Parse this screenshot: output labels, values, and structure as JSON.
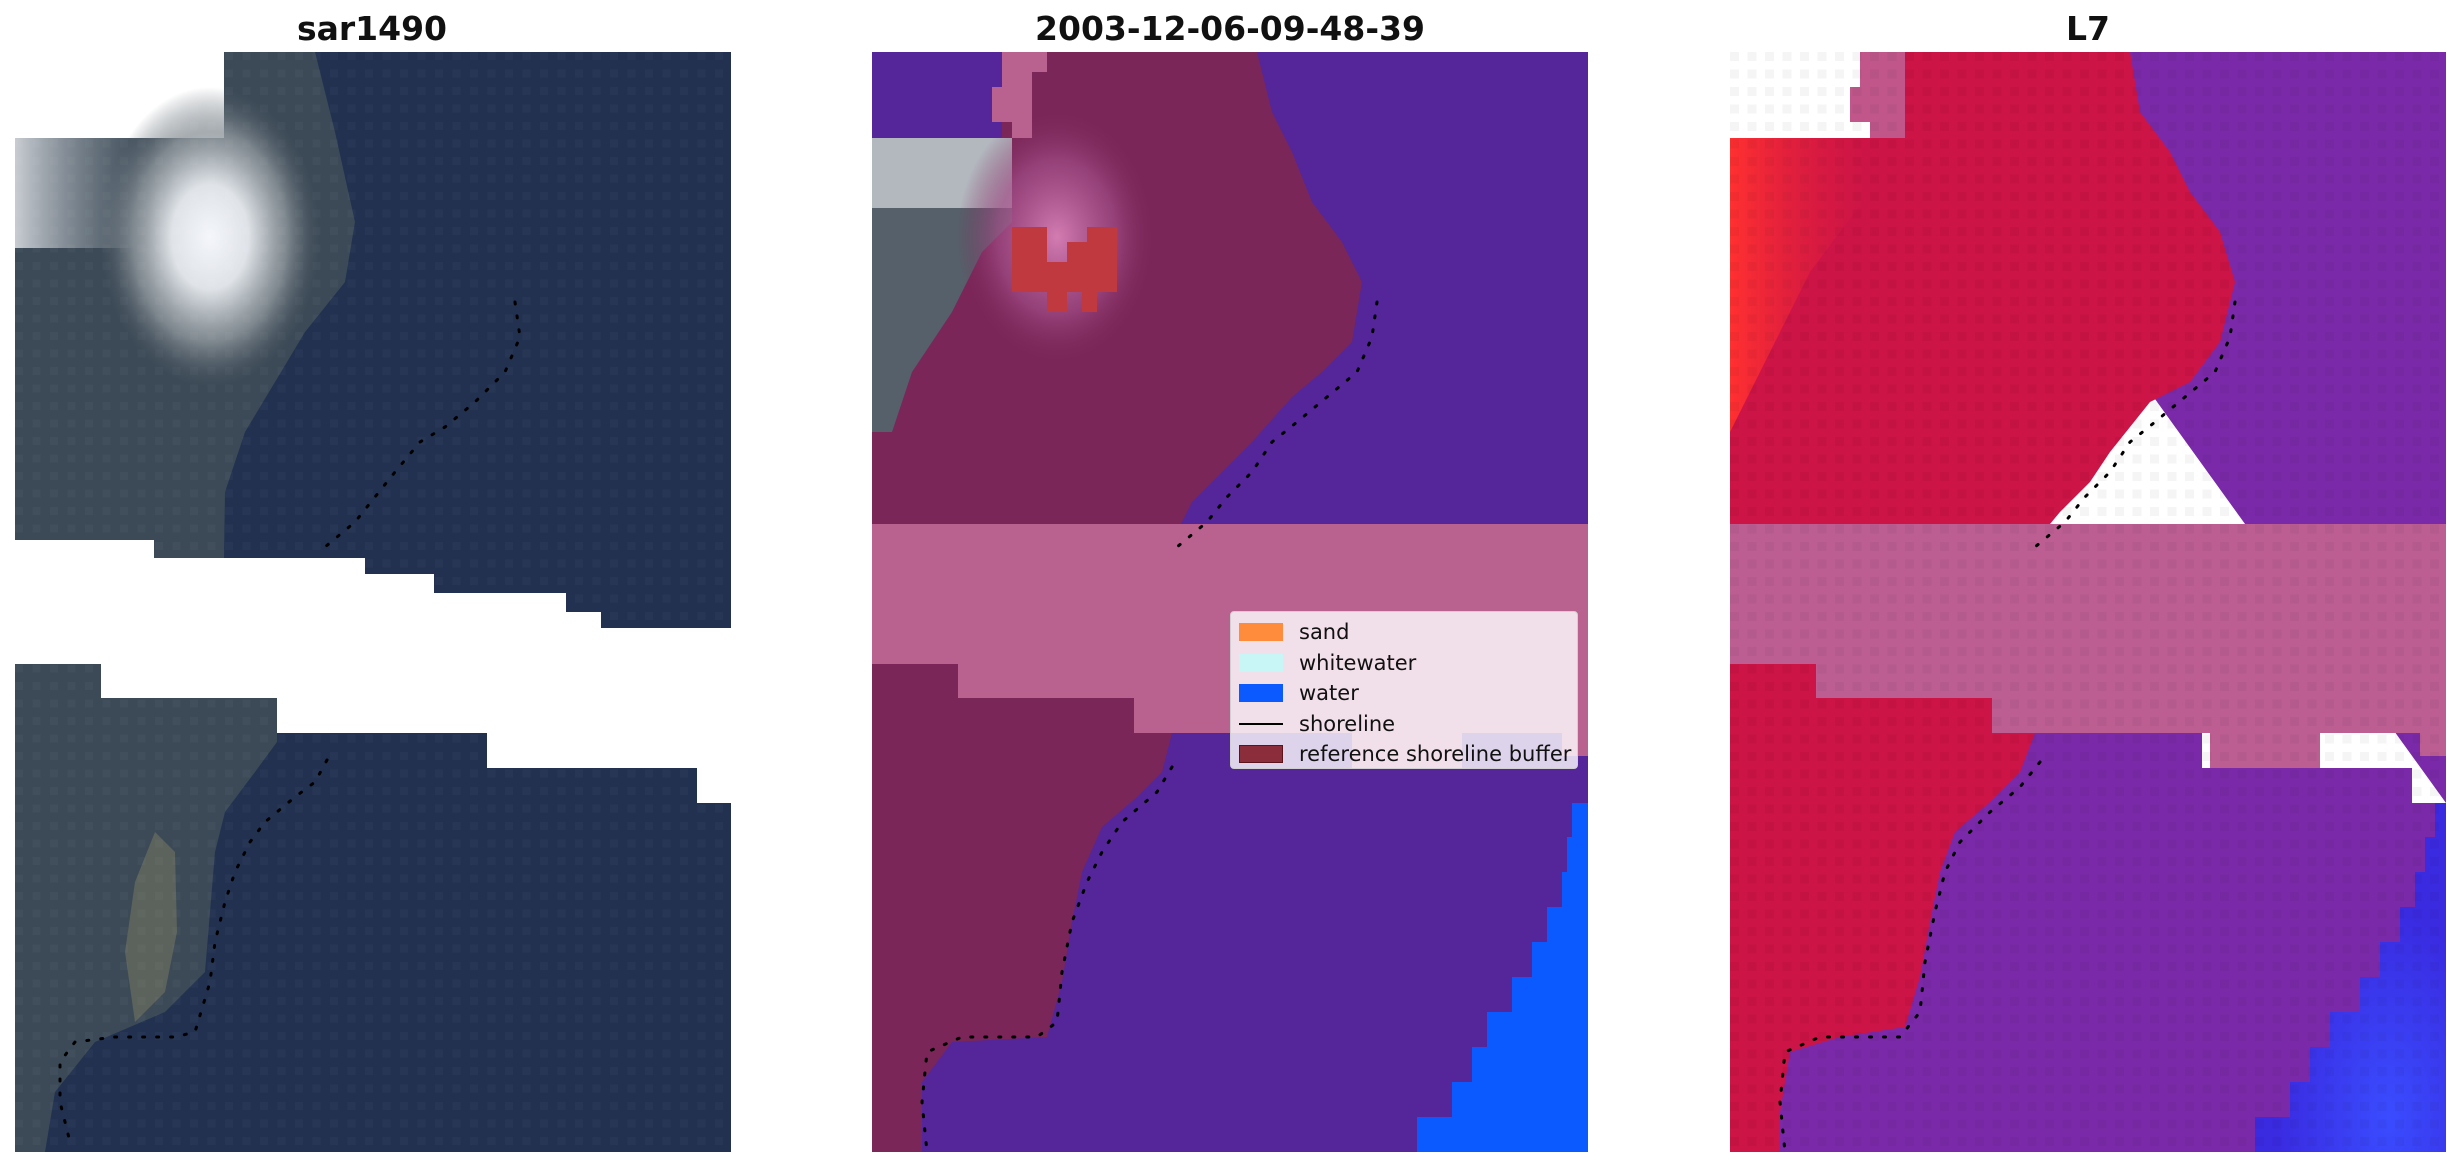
{
  "panels": [
    {
      "title": "sar1490",
      "kind": "rgb-composite"
    },
    {
      "title": "2003-12-06-09-48-39",
      "kind": "classified"
    },
    {
      "title": "L7",
      "kind": "false-color"
    }
  ],
  "legend": {
    "items": [
      {
        "label": "sand",
        "color": "#ff8c3c",
        "kind": "patch"
      },
      {
        "label": "whitewater",
        "color": "#c8f5f5",
        "kind": "patch"
      },
      {
        "label": "water",
        "color": "#0a5aff",
        "kind": "patch"
      },
      {
        "label": "shoreline",
        "color": "#000000",
        "kind": "line"
      },
      {
        "label": "reference shoreline buffer",
        "color": "#8b2d3a",
        "kind": "patch"
      }
    ]
  },
  "colors": {
    "ocean_rgb": "#203050",
    "land_rgb": "#3a4a58",
    "cloud": "#eef2f8",
    "class_water": "#55259a",
    "class_land": "#7a2658",
    "buffer_overlay": "#b9628f",
    "class_sand": "#c0393f",
    "deep_water": "#0a5aff",
    "fc_land": "#cc1446",
    "fc_water": "#7a2aa8",
    "fc_bright": "#ff2a2a",
    "fc_deep": "#2a2aff"
  }
}
